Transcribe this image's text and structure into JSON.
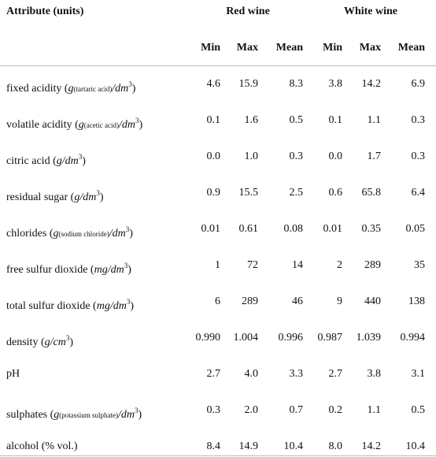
{
  "table": {
    "header": {
      "attribute": "Attribute (units)",
      "groups": [
        "Red wine",
        "White wine"
      ],
      "columns": [
        "Min",
        "Max",
        "Mean",
        "Min",
        "Max",
        "Mean"
      ]
    },
    "rows": [
      {
        "label": [
          {
            "text": "fixed acidity ("
          },
          {
            "math": "g"
          },
          {
            "small": "(tartaric acid)"
          },
          {
            "math": "/dm"
          },
          {
            "sup": "3"
          },
          {
            "text": ")"
          }
        ],
        "values": [
          "4.6",
          "15.9",
          "8.3",
          "3.8",
          "14.2",
          "6.9"
        ]
      },
      {
        "label": [
          {
            "text": "volatile acidity ("
          },
          {
            "math": "g"
          },
          {
            "small": "(acetic acid)"
          },
          {
            "math": "/dm"
          },
          {
            "sup": "3"
          },
          {
            "text": ")"
          }
        ],
        "values": [
          "0.1",
          "1.6",
          "0.5",
          "0.1",
          "1.1",
          "0.3"
        ]
      },
      {
        "label": [
          {
            "text": "citric acid ("
          },
          {
            "math": "g/dm"
          },
          {
            "sup": "3"
          },
          {
            "text": ")"
          }
        ],
        "values": [
          "0.0",
          "1.0",
          "0.3",
          "0.0",
          "1.7",
          "0.3"
        ]
      },
      {
        "label": [
          {
            "text": "residual sugar ("
          },
          {
            "math": "g/dm"
          },
          {
            "sup": "3"
          },
          {
            "text": ")"
          }
        ],
        "values": [
          "0.9",
          "15.5",
          "2.5",
          "0.6",
          "65.8",
          "6.4"
        ]
      },
      {
        "label": [
          {
            "text": "chlorides ("
          },
          {
            "math": "g"
          },
          {
            "small": "(sodium chloride)"
          },
          {
            "math": "/dm"
          },
          {
            "sup": "3"
          },
          {
            "text": ")"
          }
        ],
        "values": [
          "0.01",
          "0.61",
          "0.08",
          "0.01",
          "0.35",
          "0.05"
        ]
      },
      {
        "label": [
          {
            "text": "free sulfur dioxide ("
          },
          {
            "math": "mg/dm"
          },
          {
            "sup": "3"
          },
          {
            "text": ")"
          }
        ],
        "values": [
          "1",
          "72",
          "14",
          "2",
          "289",
          "35"
        ]
      },
      {
        "label": [
          {
            "text": "total sulfur dioxide ("
          },
          {
            "math": "mg/dm"
          },
          {
            "sup": "3"
          },
          {
            "text": ")"
          }
        ],
        "values": [
          "6",
          "289",
          "46",
          "9",
          "440",
          "138"
        ]
      },
      {
        "label": [
          {
            "text": "density ("
          },
          {
            "math": "g/cm"
          },
          {
            "sup": "3"
          },
          {
            "text": ")"
          }
        ],
        "values": [
          "0.990",
          "1.004",
          "0.996",
          "0.987",
          "1.039",
          "0.994"
        ]
      },
      {
        "label": [
          {
            "text": "pH"
          }
        ],
        "values": [
          "2.7",
          "4.0",
          "3.3",
          "2.7",
          "3.8",
          "3.1"
        ]
      },
      {
        "label": [
          {
            "text": "sulphates ("
          },
          {
            "math": "g"
          },
          {
            "small": "(potassium sulphate)"
          },
          {
            "math": "/dm"
          },
          {
            "sup": "3"
          },
          {
            "text": ")"
          }
        ],
        "values": [
          "0.3",
          "2.0",
          "0.7",
          "0.2",
          "1.1",
          "0.5"
        ]
      },
      {
        "label": [
          {
            "text": "alcohol (% vol.)"
          }
        ],
        "values": [
          "8.4",
          "14.9",
          "10.4",
          "8.0",
          "14.2",
          "10.4"
        ]
      }
    ]
  }
}
